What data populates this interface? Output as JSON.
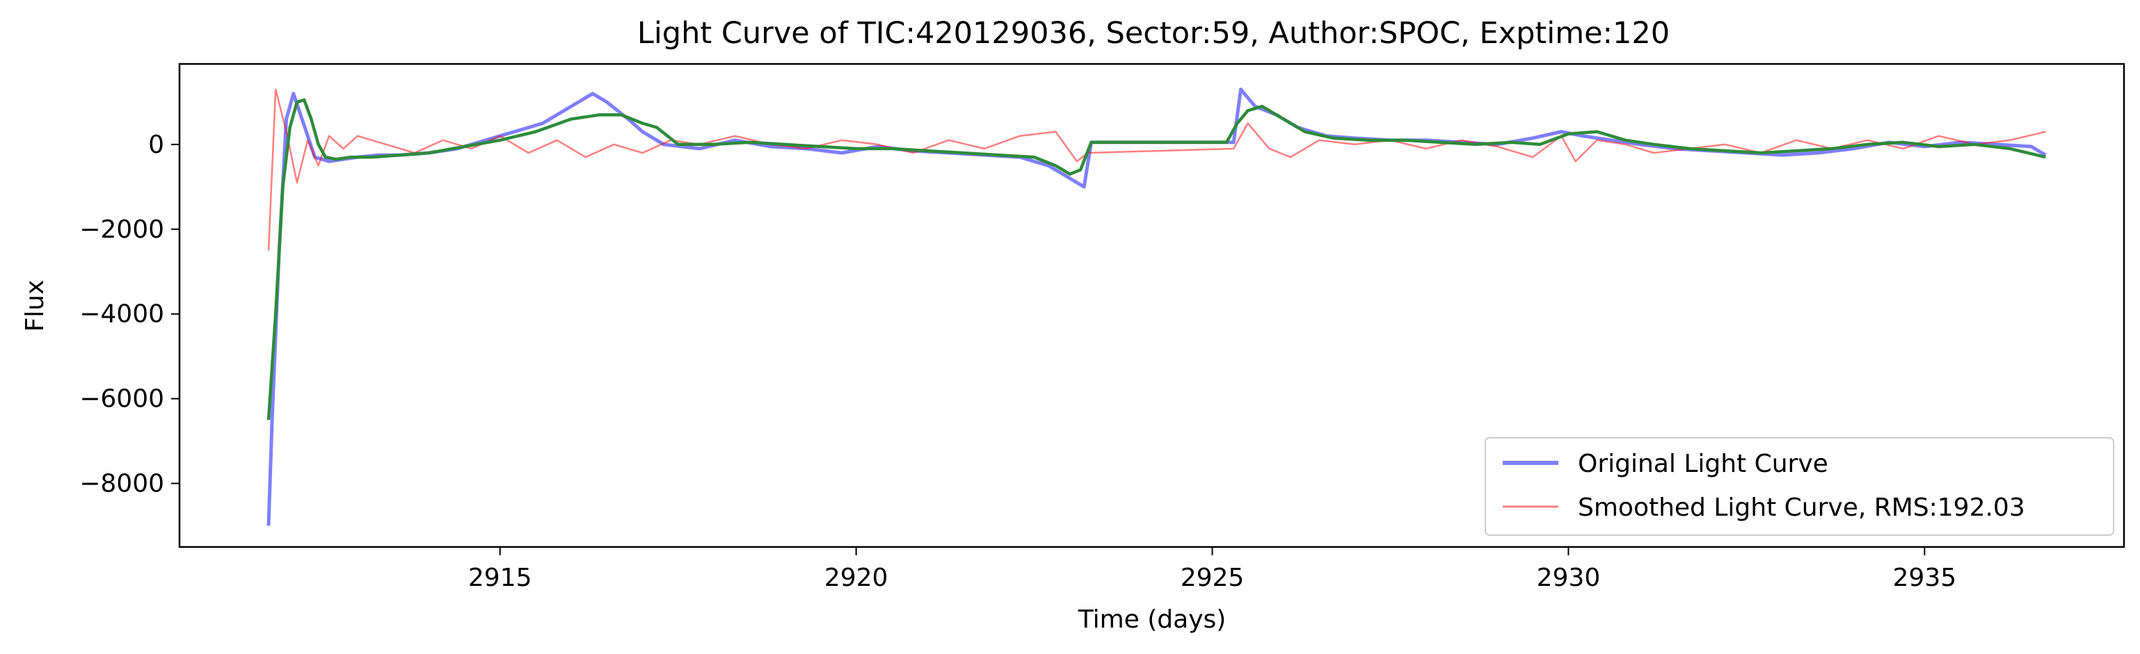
{
  "chart_data": {
    "type": "line",
    "title": "Light Curve of TIC:420129036, Sector:59, Author:SPOC, Exptime:120",
    "xlabel": "Time (days)",
    "ylabel": "Flux",
    "xlim": [
      2910.5,
      2937.8
    ],
    "ylim": [
      -9500,
      1900
    ],
    "xticks": [
      2915,
      2920,
      2925,
      2930,
      2935
    ],
    "xtick_labels": [
      "2915",
      "2920",
      "2925",
      "2930",
      "2935"
    ],
    "yticks": [
      -8000,
      -6000,
      -4000,
      -2000,
      0
    ],
    "ytick_labels": [
      "−8000",
      "−6000",
      "−4000",
      "−2000",
      "0"
    ],
    "grid": false,
    "legend_position": "lower-right",
    "series": [
      {
        "name": "Original Light Curve",
        "color": "#0000ff",
        "alpha": 0.5,
        "x": [
          2911.75,
          2911.8,
          2911.9,
          2912.0,
          2912.1,
          2912.2,
          2912.3,
          2912.4,
          2912.6,
          2912.8,
          2913.0,
          2913.3,
          2913.6,
          2914.0,
          2914.4,
          2914.8,
          2915.2,
          2915.6,
          2916.0,
          2916.3,
          2916.5,
          2916.8,
          2917.0,
          2917.3,
          2917.8,
          2918.3,
          2918.8,
          2919.3,
          2919.8,
          2920.3,
          2920.8,
          2921.3,
          2921.8,
          2922.3,
          2922.7,
          2923.0,
          2923.2,
          2923.3,
          2925.3,
          2925.4,
          2925.6,
          2925.9,
          2926.2,
          2926.6,
          2927.0,
          2927.5,
          2928.0,
          2928.5,
          2929.0,
          2929.5,
          2929.9,
          2930.2,
          2930.6,
          2931.0,
          2931.5,
          2932.0,
          2932.5,
          2933.0,
          2933.5,
          2934.0,
          2934.5,
          2935.0,
          2935.5,
          2936.0,
          2936.5,
          2936.7
        ],
        "y": [
          -9000,
          -6500,
          -2500,
          600,
          1200,
          700,
          200,
          -300,
          -400,
          -350,
          -300,
          -250,
          -250,
          -200,
          -100,
          100,
          300,
          500,
          900,
          1200,
          1000,
          600,
          300,
          0,
          -100,
          100,
          -50,
          -100,
          -200,
          -50,
          -150,
          -200,
          -250,
          -300,
          -500,
          -800,
          -1000,
          50,
          50,
          1300,
          900,
          700,
          400,
          200,
          150,
          100,
          100,
          50,
          0,
          150,
          300,
          200,
          100,
          0,
          -100,
          -150,
          -200,
          -250,
          -200,
          -100,
          50,
          -50,
          50,
          0,
          -50,
          -250
        ]
      },
      {
        "name": "Smoothed Light Curve, RMS:192.03",
        "color": "#ff0000",
        "alpha": 0.5,
        "x": [
          2911.75,
          2911.85,
          2912.0,
          2912.15,
          2912.3,
          2912.45,
          2912.6,
          2912.8,
          2913.0,
          2913.4,
          2913.8,
          2914.2,
          2914.6,
          2915.0,
          2915.4,
          2915.8,
          2916.2,
          2916.6,
          2917.0,
          2917.4,
          2917.8,
          2918.3,
          2918.8,
          2919.3,
          2919.8,
          2920.3,
          2920.8,
          2921.3,
          2921.8,
          2922.3,
          2922.8,
          2923.1,
          2923.25,
          2925.3,
          2925.5,
          2925.8,
          2926.1,
          2926.5,
          2927.0,
          2927.5,
          2928.0,
          2928.5,
          2929.0,
          2929.5,
          2929.9,
          2930.1,
          2930.4,
          2930.8,
          2931.2,
          2931.7,
          2932.2,
          2932.7,
          2933.2,
          2933.7,
          2934.2,
          2934.7,
          2935.2,
          2935.7,
          2936.2,
          2936.7
        ],
        "y": [
          -2500,
          1300,
          300,
          -900,
          100,
          -500,
          200,
          -100,
          200,
          0,
          -200,
          100,
          -100,
          200,
          -200,
          100,
          -300,
          0,
          -200,
          100,
          0,
          200,
          0,
          -100,
          100,
          0,
          -200,
          100,
          -100,
          200,
          300,
          -400,
          -200,
          -100,
          500,
          -100,
          -300,
          100,
          0,
          100,
          -100,
          100,
          -50,
          -300,
          200,
          -400,
          100,
          0,
          -200,
          -100,
          0,
          -200,
          100,
          -100,
          100,
          -100,
          200,
          0,
          100,
          300
        ]
      },
      {
        "name": "",
        "color": "#2e8b3a",
        "alpha": 1.0,
        "x": [
          2911.75,
          2911.85,
          2911.95,
          2912.05,
          2912.15,
          2912.25,
          2912.35,
          2912.45,
          2912.55,
          2912.7,
          2912.9,
          2913.2,
          2913.6,
          2914.0,
          2914.5,
          2915.0,
          2915.5,
          2916.0,
          2916.4,
          2916.7,
          2917.0,
          2917.2,
          2917.5,
          2918.0,
          2918.5,
          2919.0,
          2919.5,
          2920.0,
          2920.5,
          2921.0,
          2921.5,
          2922.0,
          2922.5,
          2922.8,
          2923.0,
          2923.15,
          2923.3,
          2925.2,
          2925.35,
          2925.5,
          2925.7,
          2926.0,
          2926.3,
          2926.7,
          2927.2,
          2927.7,
          2928.2,
          2928.7,
          2929.2,
          2929.6,
          2930.0,
          2930.4,
          2930.8,
          2931.2,
          2931.7,
          2932.2,
          2932.7,
          2933.2,
          2933.7,
          2934.2,
          2934.7,
          2935.2,
          2935.7,
          2936.2,
          2936.7
        ],
        "y": [
          -6500,
          -4000,
          -1000,
          400,
          1000,
          1050,
          600,
          0,
          -300,
          -350,
          -300,
          -300,
          -250,
          -200,
          -50,
          100,
          300,
          600,
          700,
          700,
          500,
          400,
          0,
          0,
          50,
          0,
          -50,
          -100,
          -100,
          -150,
          -200,
          -250,
          -300,
          -500,
          -700,
          -600,
          50,
          50,
          500,
          800,
          900,
          600,
          300,
          150,
          100,
          100,
          50,
          0,
          50,
          0,
          250,
          300,
          100,
          0,
          -100,
          -150,
          -200,
          -150,
          -100,
          0,
          50,
          -50,
          0,
          -100,
          -300
        ]
      }
    ]
  }
}
